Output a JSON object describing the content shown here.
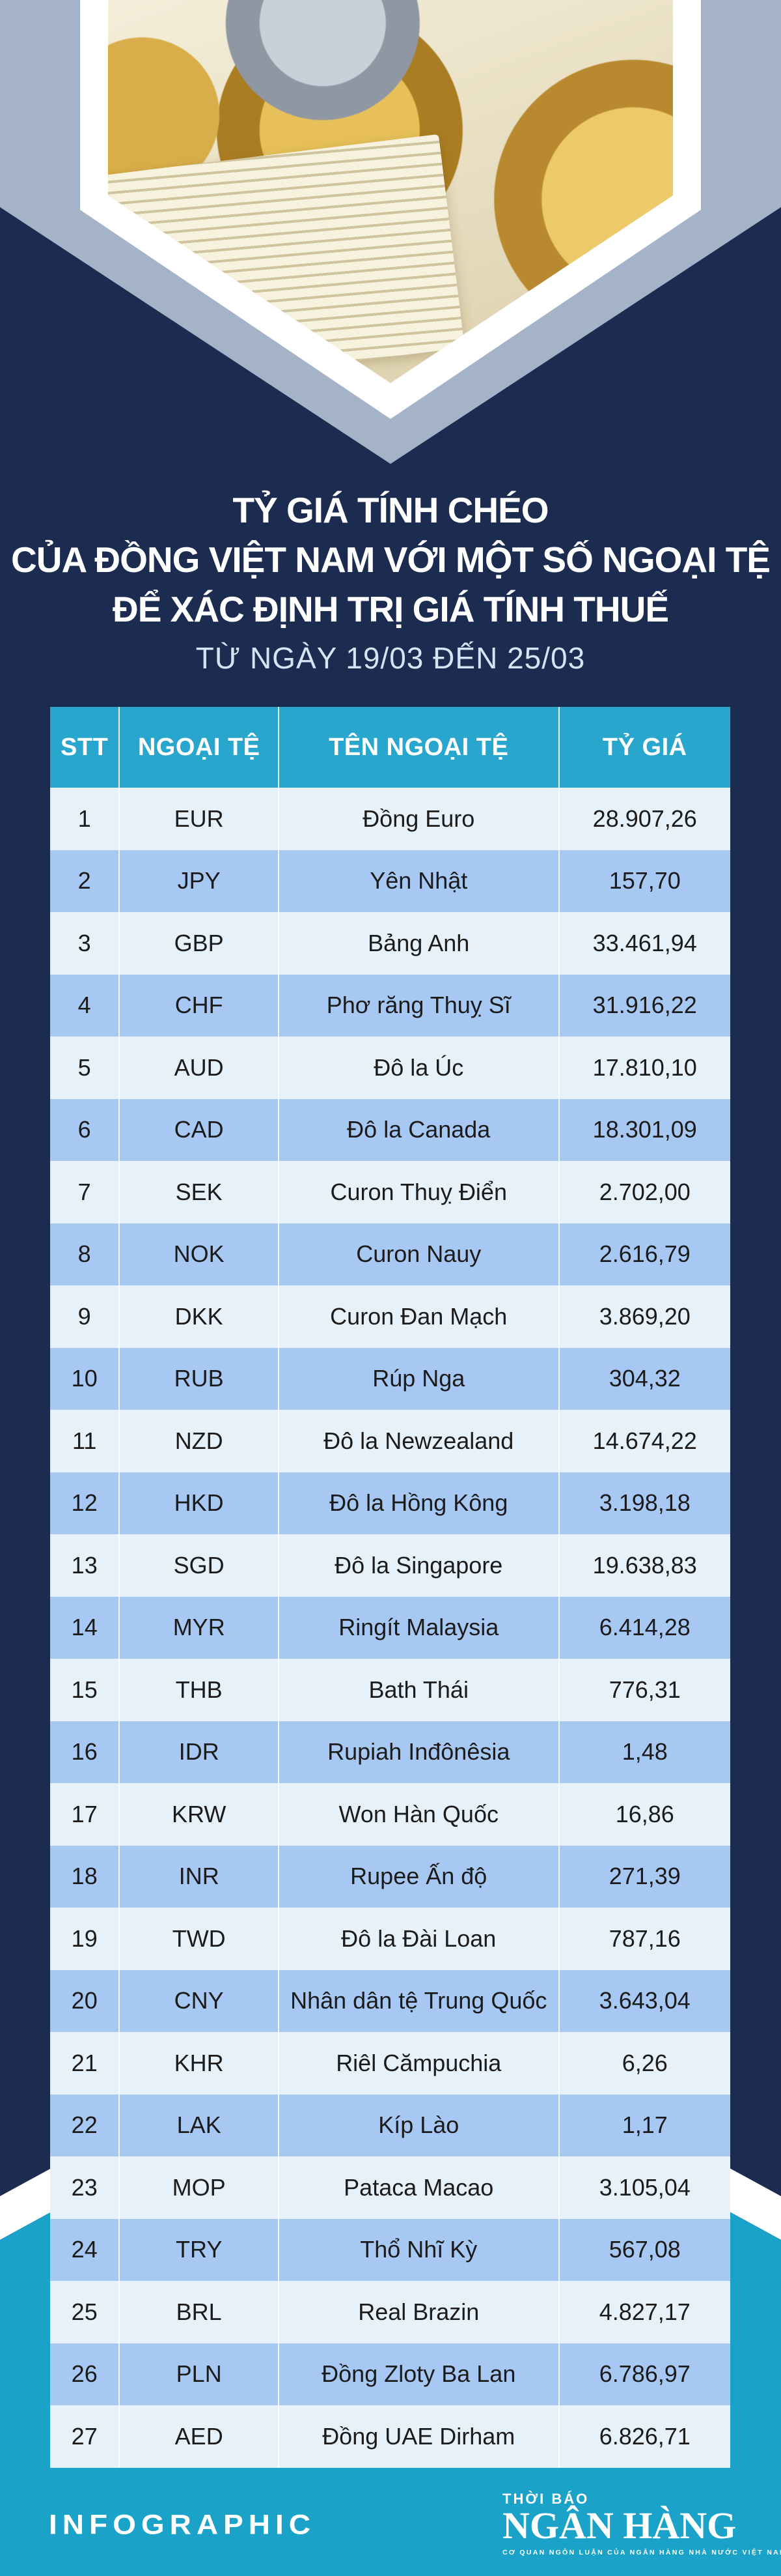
{
  "hero": {
    "title_lines": [
      "TỶ GIÁ TÍNH CHÉO",
      "CỦA ĐỒNG VIỆT NAM VỚI MỘT SỐ NGOẠI TỆ",
      "ĐỂ XÁC ĐỊNH TRỊ GIÁ TÍNH THUẾ"
    ],
    "subtitle": "TỪ NGÀY 19/03 ĐẾN 25/03"
  },
  "chart_data": {
    "type": "table",
    "title": "TỶ GIÁ TÍNH CHÉO CỦA ĐỒNG VIỆT NAM VỚI MỘT SỐ NGOẠI TỆ ĐỂ XÁC ĐỊNH TRỊ GIÁ TÍNH THUẾ",
    "subtitle": "TỪ NGÀY 19/03 ĐẾN 25/03",
    "columns": [
      "STT",
      "NGOẠI TỆ",
      "TÊN NGOẠI TỆ",
      "TỶ GIÁ"
    ],
    "rows": [
      [
        "1",
        "EUR",
        "Đồng Euro",
        "28.907,26"
      ],
      [
        "2",
        "JPY",
        "Yên Nhật",
        "157,70"
      ],
      [
        "3",
        "GBP",
        "Bảng Anh",
        "33.461,94"
      ],
      [
        "4",
        "CHF",
        "Phơ răng Thuỵ Sĩ",
        "31.916,22"
      ],
      [
        "5",
        "AUD",
        "Đô la Úc",
        "17.810,10"
      ],
      [
        "6",
        "CAD",
        "Đô la Canada",
        "18.301,09"
      ],
      [
        "7",
        "SEK",
        "Curon Thuỵ Điển",
        "2.702,00"
      ],
      [
        "8",
        "NOK",
        "Curon Nauy",
        "2.616,79"
      ],
      [
        "9",
        "DKK",
        "Curon Đan Mạch",
        "3.869,20"
      ],
      [
        "10",
        "RUB",
        "Rúp Nga",
        "304,32"
      ],
      [
        "11",
        "NZD",
        "Đô la Newzealand",
        "14.674,22"
      ],
      [
        "12",
        "HKD",
        "Đô la Hồng Kông",
        "3.198,18"
      ],
      [
        "13",
        "SGD",
        "Đô la Singapore",
        "19.638,83"
      ],
      [
        "14",
        "MYR",
        "Ringít Malaysia",
        "6.414,28"
      ],
      [
        "15",
        "THB",
        "Bath Thái",
        "776,31"
      ],
      [
        "16",
        "IDR",
        "Rupiah Inđônêsia",
        "1,48"
      ],
      [
        "17",
        "KRW",
        "Won Hàn Quốc",
        "16,86"
      ],
      [
        "18",
        "INR",
        "Rupee Ấn độ",
        "271,39"
      ],
      [
        "19",
        "TWD",
        "Đô la Đài Loan",
        "787,16"
      ],
      [
        "20",
        "CNY",
        "Nhân dân tệ Trung Quốc",
        "3.643,04"
      ],
      [
        "21",
        "KHR",
        "Riêl Cămpuchia",
        "6,26"
      ],
      [
        "22",
        "LAK",
        "Kíp Lào",
        "1,17"
      ],
      [
        "23",
        "MOP",
        "Pataca Macao",
        "3.105,04"
      ],
      [
        "24",
        "TRY",
        "Thổ Nhĩ Kỳ",
        "567,08"
      ],
      [
        "25",
        "BRL",
        "Real Brazin",
        "4.827,17"
      ],
      [
        "26",
        "PLN",
        "Đồng Zloty Ba Lan",
        "6.786,97"
      ],
      [
        "27",
        "AED",
        "Đồng UAE Dirham",
        "6.826,71"
      ]
    ]
  },
  "footer": {
    "brand": "INFOGRAPHIC",
    "logo_top": "THỜI BÁO",
    "logo_main": "NGÂN HÀNG",
    "logo_tagline": "CƠ QUAN NGÔN LUẬN CỦA NGÂN HÀNG NHÀ NƯỚC VIỆT NAM"
  },
  "colors": {
    "navy_background": "#1c2b50",
    "bluegray_accent": "#a5b3c9",
    "header_cyan": "#29a6ce",
    "row_light": "#e7f1fa",
    "row_alt": "#a6c8f2",
    "footer_cyan": "#1ba2c8",
    "title_text": "#ffffff",
    "subtitle_text": "#d6e3f3",
    "cell_text": "#1b1b1b"
  }
}
